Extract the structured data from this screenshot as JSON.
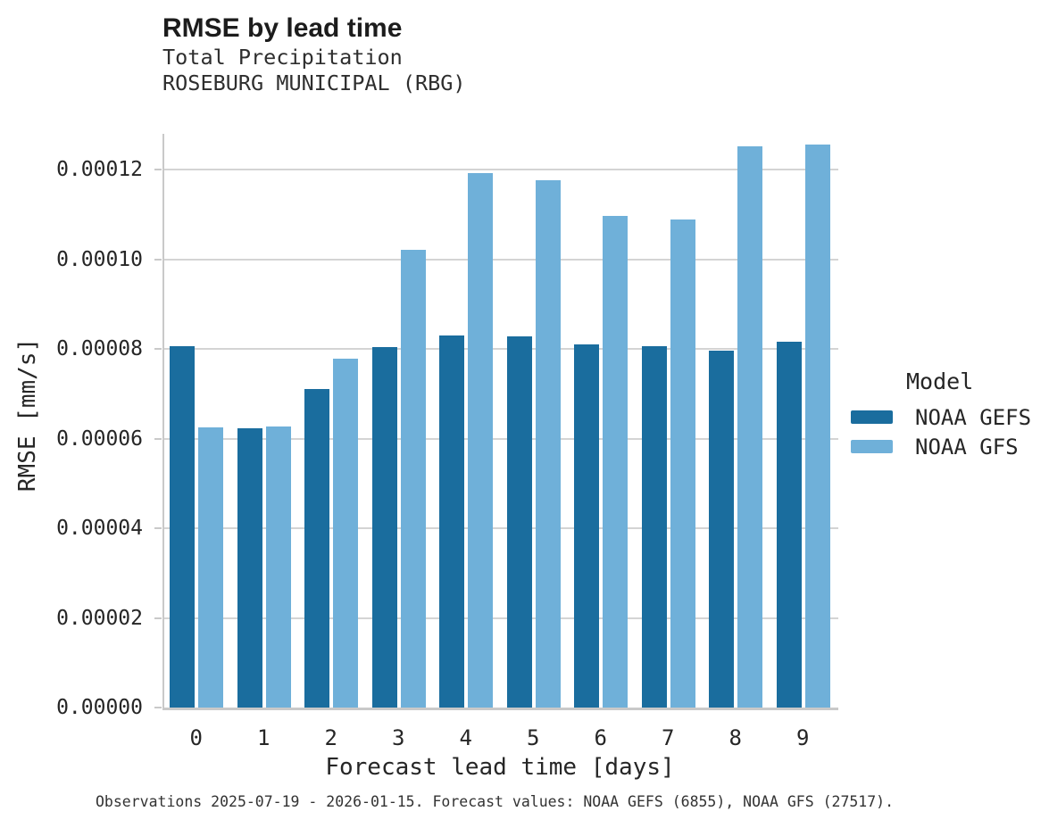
{
  "header": {
    "title": "RMSE by lead time",
    "subtitle_line1": "Total Precipitation",
    "subtitle_line2": "ROSEBURG MUNICIPAL (RBG)"
  },
  "chart_data": {
    "type": "bar",
    "title": "RMSE by lead time",
    "subtitle": [
      "Total Precipitation",
      "ROSEBURG MUNICIPAL (RBG)"
    ],
    "xlabel": "Forecast lead time [days]",
    "ylabel": "RMSE [mm/s]",
    "categories": [
      "0",
      "1",
      "2",
      "3",
      "4",
      "5",
      "6",
      "7",
      "8",
      "9"
    ],
    "series": [
      {
        "name": "NOAA GEFS",
        "color": "#1a6d9e",
        "edge_color": "#15608d",
        "values": [
          8.06e-05,
          6.23e-05,
          7.1e-05,
          8.04e-05,
          8.31e-05,
          8.28e-05,
          8.11e-05,
          8.06e-05,
          7.97e-05,
          8.17e-05
        ]
      },
      {
        "name": "NOAA GFS",
        "color": "#6fb0d9",
        "edge_color": "#5fa3cf",
        "values": [
          6.25e-05,
          6.27e-05,
          7.78e-05,
          0.0001022,
          0.0001192,
          0.0001177,
          0.0001096,
          0.0001088,
          0.0001253,
          0.0001256
        ]
      }
    ],
    "ylim": [
      0,
      0.000128
    ],
    "yticks": [
      0.0,
      2e-05,
      4e-05,
      6e-05,
      8e-05,
      0.0001,
      0.00012
    ],
    "ytick_labels": [
      "0.00000",
      "0.00002",
      "0.00004",
      "0.00006",
      "0.00008",
      "0.00010",
      "0.00012"
    ],
    "grid": "horizontal",
    "grid_color": "#d4d4d4",
    "legend_position": "right",
    "legend_title": "Model"
  },
  "legend": {
    "title": "Model",
    "items": [
      {
        "label": "NOAA GEFS",
        "color": "#1a6d9e"
      },
      {
        "label": "NOAA GFS",
        "color": "#6fb0d9"
      }
    ]
  },
  "footer": {
    "note": "Observations 2025-07-19 - 2026-01-15. Forecast values: NOAA GEFS (6855), NOAA GFS (27517)."
  }
}
